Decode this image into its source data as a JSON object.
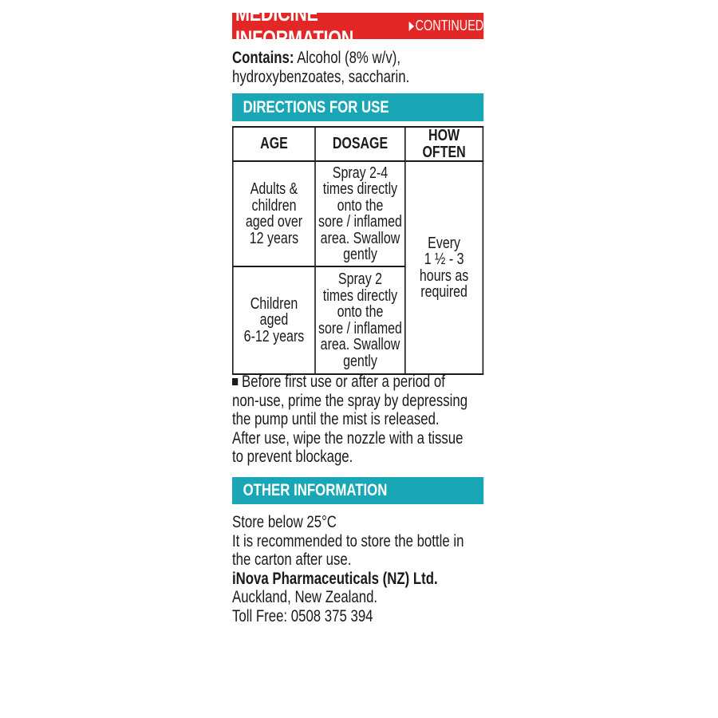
{
  "header": {
    "title": "MEDICINE INFORMATION",
    "continued": "CONTINUED",
    "color": "#e32726"
  },
  "contains": {
    "label": "Contains:",
    "lines": [
      "Alcohol (8% w/v),",
      "hydroxybenzoates, saccharin."
    ]
  },
  "directions": {
    "title": "DIRECTIONS FOR USE",
    "color": "#1aa7b5",
    "table": {
      "headers": [
        "AGE",
        "DOSAGE",
        "HOW OFTEN"
      ],
      "rows": [
        {
          "age": [
            "Adults &",
            "children",
            "aged over",
            "12 years"
          ],
          "dosage": [
            "Spray 2-4",
            "times directly",
            "onto the",
            "sore / inflamed",
            "area. Swallow",
            "gently"
          ]
        },
        {
          "age": [
            "Children",
            "aged",
            "6-12 years"
          ],
          "dosage": [
            "Spray 2",
            "times directly",
            "onto the",
            "sore / inflamed",
            "area. Swallow",
            "gently"
          ]
        }
      ],
      "how_often": [
        "Every",
        "1 ½ - 3",
        "hours as",
        "required"
      ]
    },
    "note": [
      "Before first use or after a period of",
      "non-use, prime the spray by depressing",
      "the pump until the mist is released.",
      "After use, wipe the nozzle with a tissue",
      "to prevent blockage."
    ]
  },
  "other": {
    "title": "OTHER INFORMATION",
    "lines": [
      "Store below 25°C",
      "It is recommended to store the bottle in",
      "the carton after use."
    ],
    "company": "iNova Pharmaceuticals (NZ) Ltd.",
    "address": "Auckland, New Zealand.",
    "phone": "Toll Free: 0508 375 394"
  }
}
